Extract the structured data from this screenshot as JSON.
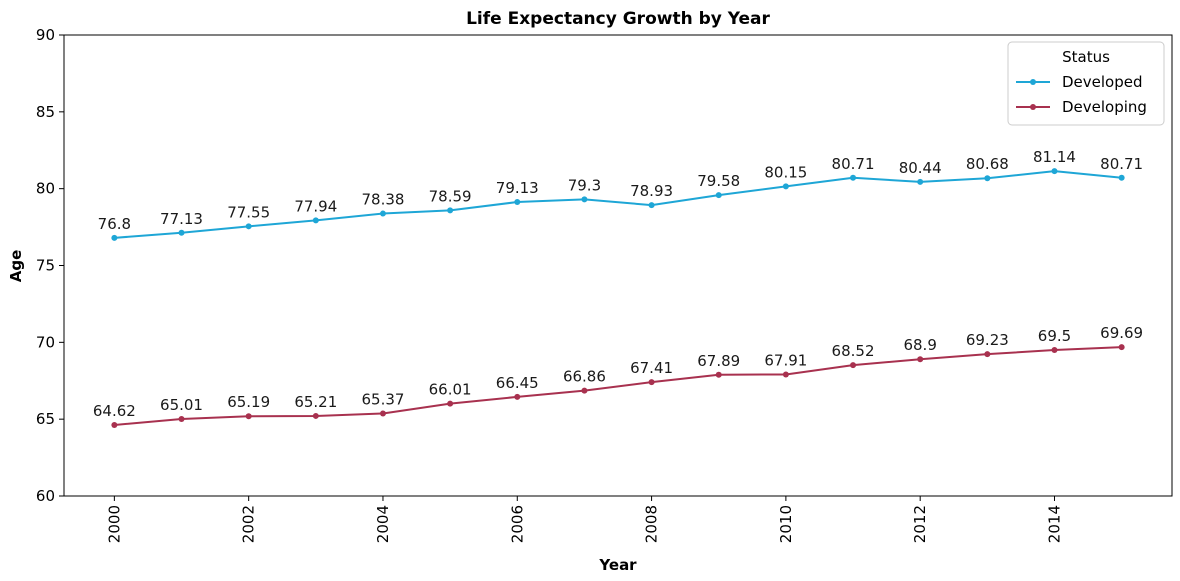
{
  "chart_data": {
    "type": "line",
    "title": "Life Expectancy Growth by Year",
    "xlabel": "Year",
    "ylabel": "Age",
    "x": [
      2000,
      2001,
      2002,
      2003,
      2004,
      2005,
      2006,
      2007,
      2008,
      2009,
      2010,
      2011,
      2012,
      2013,
      2014,
      2015
    ],
    "xlim": [
      1999.25,
      2015.75
    ],
    "ylim": [
      60,
      90
    ],
    "xticks": [
      "2000",
      "2002",
      "2004",
      "2006",
      "2008",
      "2010",
      "2012",
      "2014"
    ],
    "yticks": [
      "60",
      "65",
      "70",
      "75",
      "80",
      "85",
      "90"
    ],
    "grid": false,
    "legend": {
      "title": "Status",
      "placement": "top-right"
    },
    "series": [
      {
        "name": "Developed",
        "color": "#1ea6d6",
        "values": [
          76.8,
          77.13,
          77.55,
          77.94,
          78.38,
          78.59,
          79.13,
          79.3,
          78.93,
          79.58,
          80.15,
          80.71,
          80.44,
          80.68,
          81.14,
          80.71
        ],
        "labels": [
          "76.8",
          "77.13",
          "77.55",
          "77.94",
          "78.38",
          "78.59",
          "79.13",
          "79.3",
          "78.93",
          "79.58",
          "80.15",
          "80.71",
          "80.44",
          "80.68",
          "81.14",
          "80.71"
        ]
      },
      {
        "name": "Developing",
        "color": "#a8314f",
        "values": [
          64.62,
          65.01,
          65.19,
          65.21,
          65.37,
          66.01,
          66.45,
          66.86,
          67.41,
          67.89,
          67.91,
          68.52,
          68.9,
          69.23,
          69.5,
          69.69
        ],
        "labels": [
          "64.62",
          "65.01",
          "65.19",
          "65.21",
          "65.37",
          "66.01",
          "66.45",
          "66.86",
          "67.41",
          "67.89",
          "67.91",
          "68.52",
          "68.9",
          "69.23",
          "69.5",
          "69.69"
        ]
      }
    ]
  }
}
